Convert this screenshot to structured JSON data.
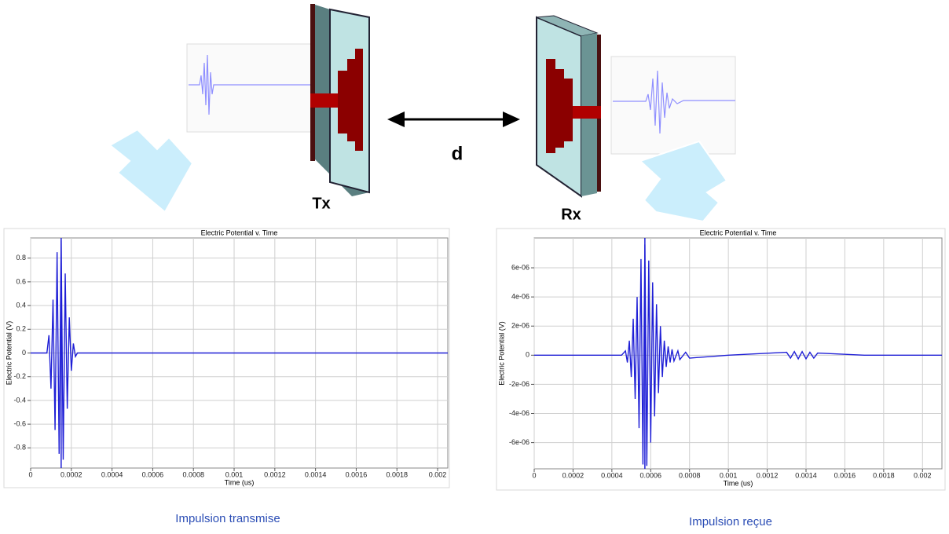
{
  "diagram": {
    "distance_label": "d",
    "tx_label": "Tx",
    "rx_label": "Rx"
  },
  "captions": [
    "Impulsion transmise",
    "Impulsion reçue"
  ],
  "chart_data": [
    {
      "type": "line",
      "title": "Electric Potential v. Time",
      "x_label": "Time (us)",
      "y_label": "Electric Potential (V)",
      "color": "#1f1fd6",
      "grid": true,
      "xlim": [
        0,
        0.00205
      ],
      "ylim": [
        -0.97,
        0.97
      ],
      "xticks": [
        0,
        0.0002,
        0.0004,
        0.0006,
        0.0008,
        0.001,
        0.0012,
        0.0014,
        0.0016,
        0.0018,
        0.002
      ],
      "yticks": [
        -0.8,
        -0.6,
        -0.4,
        -0.2,
        0,
        0.2,
        0.4,
        0.6,
        0.8
      ],
      "cursor_x": 0.00015,
      "x": [
        0,
        8e-05,
        9e-05,
        0.0001,
        0.00011,
        0.00012,
        0.00013,
        0.00014,
        0.00015,
        0.00016,
        0.00017,
        0.00018,
        0.00019,
        0.0002,
        0.00021,
        0.00022,
        0.00023,
        0.00205
      ],
      "values": [
        0,
        0,
        0.15,
        -0.3,
        0.45,
        -0.65,
        0.85,
        -0.85,
        0.95,
        -0.9,
        0.67,
        -0.47,
        0.3,
        -0.15,
        0.08,
        -0.03,
        0,
        0
      ]
    },
    {
      "type": "line",
      "title": "Electric Potential v. Time",
      "x_label": "Time (us)",
      "y_label": "Electric Potential (V)",
      "color": "#1f1fd6",
      "grid": true,
      "xlim": [
        0,
        0.0021
      ],
      "ylim": [
        -7.8e-06,
        8.05e-06
      ],
      "xticks": [
        0,
        0.0002,
        0.0004,
        0.0006,
        0.0008,
        0.001,
        0.0012,
        0.0014,
        0.0016,
        0.0018,
        0.002
      ],
      "yticks": [
        {
          "value": -6e-06,
          "label": "-6e-06"
        },
        {
          "value": -4e-06,
          "label": "-4e-06"
        },
        {
          "value": -2e-06,
          "label": "-2e-06"
        },
        0,
        {
          "value": 2e-06,
          "label": "2e-06"
        },
        {
          "value": 4e-06,
          "label": "4e-06"
        },
        {
          "value": 6e-06,
          "label": "6e-06"
        }
      ],
      "cursor_x": 0.00057,
      "x": [
        0,
        0.00045,
        0.00047,
        0.00048,
        0.00049,
        0.0005,
        0.00051,
        0.00052,
        0.00053,
        0.00054,
        0.00055,
        0.00056,
        0.00057,
        0.00058,
        0.00059,
        0.0006,
        0.00061,
        0.00062,
        0.00063,
        0.00064,
        0.00065,
        0.00066,
        0.00067,
        0.00068,
        0.00069,
        0.0007,
        0.00071,
        0.00072,
        0.00074,
        0.00075,
        0.00078,
        0.0008,
        0.001,
        0.0013,
        0.00132,
        0.00134,
        0.00136,
        0.00138,
        0.0014,
        0.00142,
        0.00144,
        0.00146,
        0.0017,
        0.0021
      ],
      "values": [
        0,
        0,
        3e-07,
        -5e-07,
        1e-06,
        -1.5e-06,
        2.5e-06,
        -3e-06,
        4e-06,
        -5e-06,
        6.6e-06,
        -7.5e-06,
        7.6e-06,
        -7.6e-06,
        6.5e-06,
        -6e-06,
        5e-06,
        -4.2e-06,
        3.5e-06,
        -2.6e-06,
        2e-06,
        -1.5e-06,
        1e-06,
        -8e-07,
        6e-07,
        -5e-07,
        4e-07,
        -4e-07,
        3e-07,
        -3e-07,
        2e-07,
        -2e-07,
        0,
        2e-07,
        -2e-07,
        2.5e-07,
        -2.5e-07,
        2.5e-07,
        -2.5e-07,
        2e-07,
        -2e-07,
        1.5e-07,
        0,
        0
      ]
    }
  ]
}
